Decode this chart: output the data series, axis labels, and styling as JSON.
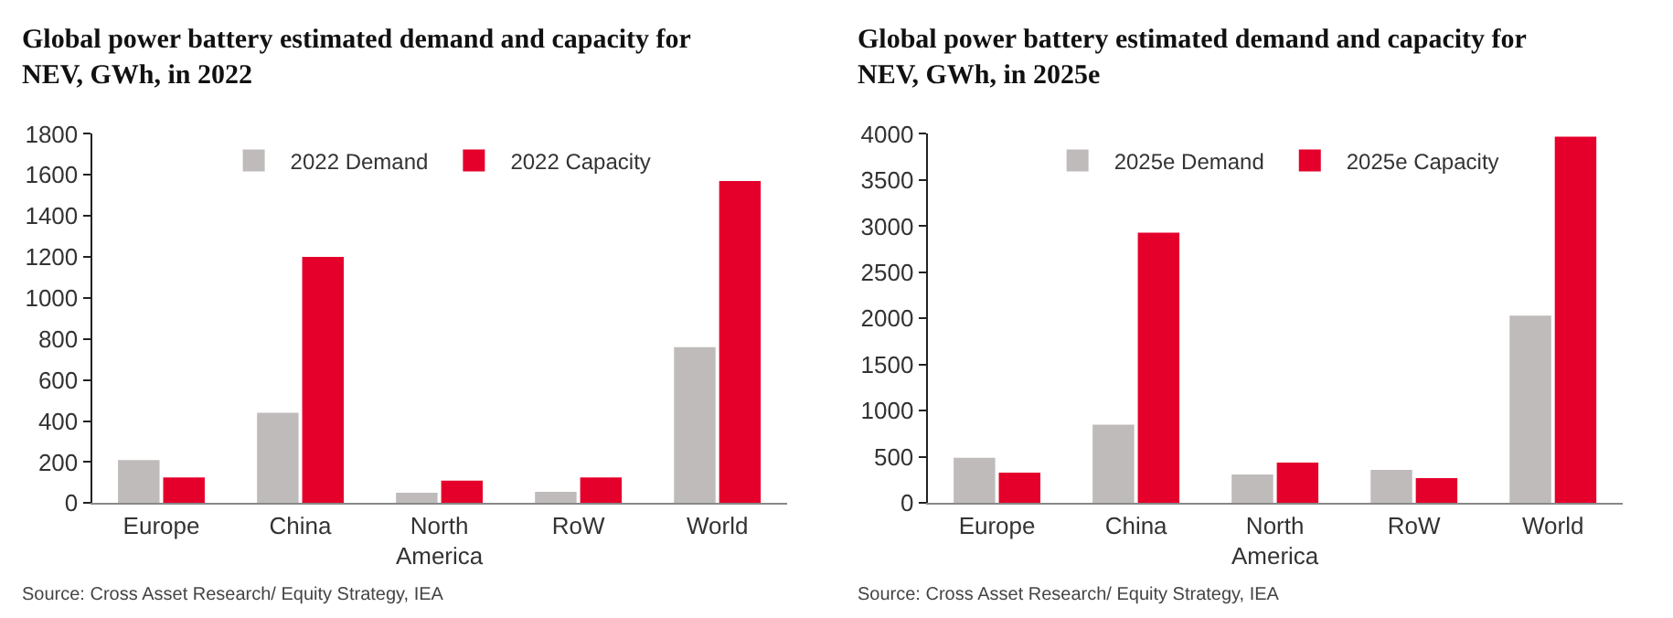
{
  "chart_data": [
    {
      "type": "bar",
      "title": "Global power battery estimated demand and capacity for NEV, GWh, in 2022",
      "categories": [
        "Europe",
        "China",
        "North America",
        "RoW",
        "World"
      ],
      "series": [
        {
          "name": "2022 Demand",
          "color": "#bfbbbb",
          "values": [
            210,
            440,
            50,
            55,
            760
          ]
        },
        {
          "name": "2022 Capacity",
          "color": "#e4002b",
          "values": [
            125,
            1200,
            110,
            125,
            1570
          ]
        }
      ],
      "ylim": [
        0,
        1800
      ],
      "yticks": [
        0,
        200,
        400,
        600,
        800,
        1000,
        1200,
        1400,
        1600,
        1800
      ],
      "legend": "top",
      "annotations": [
        "Source: Cross Asset Research/ Equity Strategy, IEA"
      ]
    },
    {
      "type": "bar",
      "title": "Global power battery estimated demand and capacity for NEV, GWh, in 2025e",
      "categories": [
        "Europe",
        "China",
        "North America",
        "RoW",
        "World"
      ],
      "series": [
        {
          "name": "2025e Demand",
          "color": "#bfbbbb",
          "values": [
            490,
            850,
            310,
            360,
            2030
          ]
        },
        {
          "name": "2025e Capacity",
          "color": "#e4002b",
          "values": [
            330,
            2930,
            440,
            270,
            3970
          ]
        }
      ],
      "ylim": [
        0,
        4000
      ],
      "yticks": [
        0,
        500,
        1000,
        1500,
        2000,
        2500,
        3000,
        3500,
        4000
      ],
      "legend": "top",
      "annotations": [
        "Source: Cross Asset Research/ Equity Strategy, IEA"
      ]
    }
  ]
}
